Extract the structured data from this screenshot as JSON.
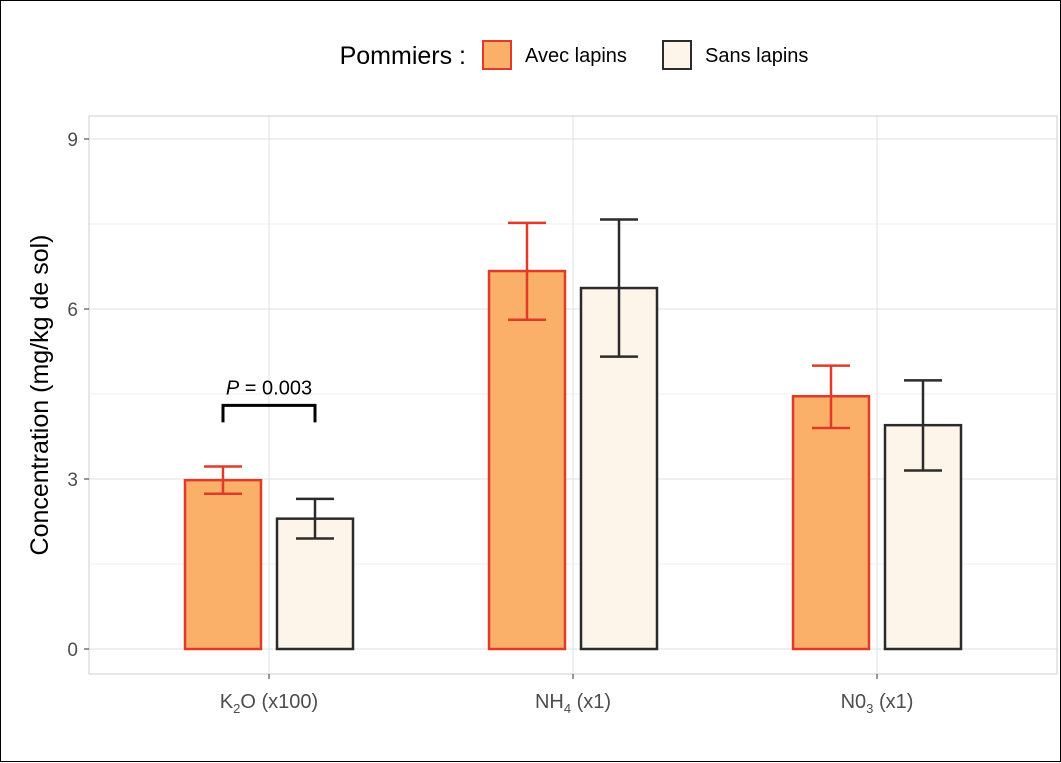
{
  "chart_data": {
    "type": "bar",
    "legend": {
      "title": "Pommiers :",
      "placement": "top"
    },
    "ylabel": "Concentration (mg/kg de sol)",
    "xlabel": "",
    "ylim": [
      0,
      9.5
    ],
    "yticks": [
      0,
      3,
      6,
      9
    ],
    "grid": true,
    "categories": [
      {
        "base": "K",
        "sub": "2",
        "rest": "O (x100)"
      },
      {
        "base": "NH",
        "sub": "4",
        "rest": " (x1)"
      },
      {
        "base": "N0",
        "sub": "3",
        "rest": " (x1)"
      }
    ],
    "series": [
      {
        "name": "Avec lapins",
        "fill": "#FBB06A",
        "stroke": "#E03A2A",
        "values": [
          2.98,
          6.67,
          4.46
        ],
        "err_low": [
          2.74,
          5.81,
          3.9
        ],
        "err_high": [
          3.22,
          7.52,
          5.0
        ]
      },
      {
        "name": "Sans lapins",
        "fill": "#FEF5EA",
        "stroke": "#2B2B2B",
        "values": [
          2.3,
          6.37,
          3.95
        ],
        "err_low": [
          1.95,
          5.16,
          3.15
        ],
        "err_high": [
          2.65,
          7.58,
          4.74
        ]
      }
    ],
    "annotation": {
      "category_index": 0,
      "p_label": "P",
      "p_text": " = 0.003",
      "bracket_y": 4.3,
      "bracket_tick_to": 4.0
    }
  }
}
